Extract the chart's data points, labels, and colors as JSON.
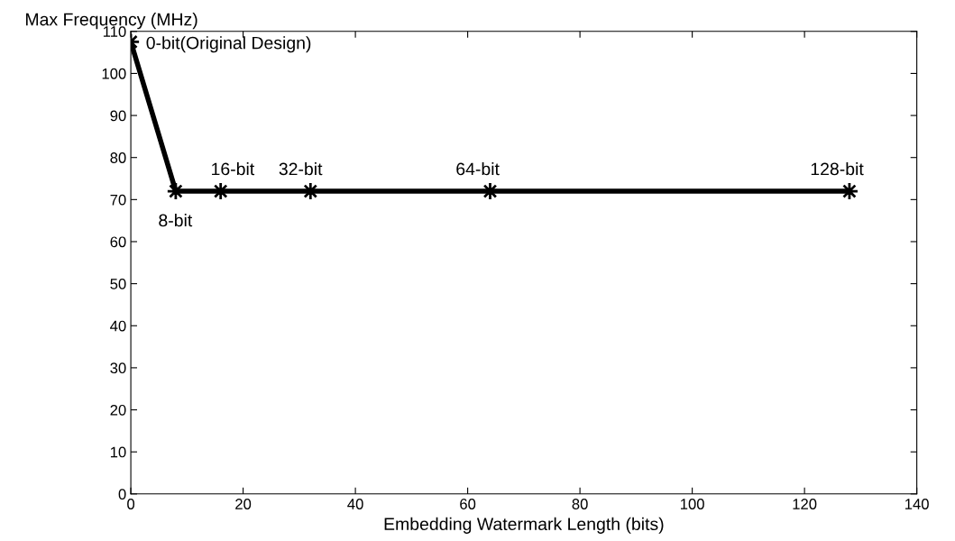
{
  "chart_data": {
    "type": "line",
    "xlabel": "Embedding Watermark Length (bits)",
    "ylabel": "Max Frequency (MHz)",
    "x": [
      0,
      8,
      16,
      32,
      64,
      128
    ],
    "series": [
      {
        "color": "#000000",
        "values": [
          107.5,
          72,
          72,
          72,
          72,
          72
        ]
      }
    ],
    "xlim": [
      0,
      140
    ],
    "xticks": [
      0,
      20,
      40,
      60,
      80,
      100,
      120,
      140
    ],
    "ylim": [
      0,
      110
    ],
    "yticks": [
      0,
      10,
      20,
      30,
      40,
      50,
      60,
      70,
      80,
      90,
      100,
      110
    ],
    "marker": "star",
    "line_style": "solid",
    "grid": false,
    "legend": false,
    "annotations": [
      {
        "text": "0-bit(Original Design)",
        "x": 0,
        "y": 107.5
      },
      {
        "text": "8-bit",
        "x": 8,
        "y": 72
      },
      {
        "text": "16-bit",
        "x": 16,
        "y": 72
      },
      {
        "text": "32-bit",
        "x": 32,
        "y": 72
      },
      {
        "text": "64-bit",
        "x": 64,
        "y": 72
      },
      {
        "text": "128-bit",
        "x": 128,
        "y": 72
      }
    ]
  }
}
